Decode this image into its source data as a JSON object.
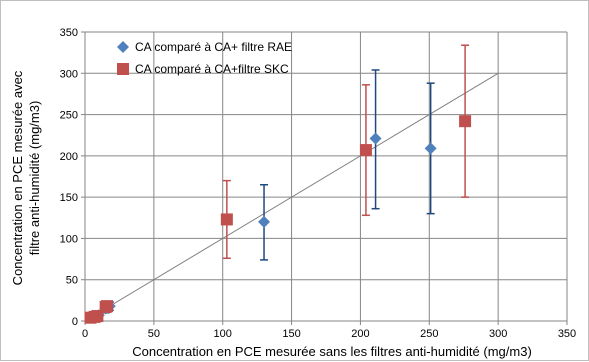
{
  "chart_data": {
    "type": "scatter",
    "title": "",
    "xlabel": "Concentration en PCE mesurée sans les filtres anti-humidité (mg/m3)",
    "ylabel": [
      "Concentration en PCE mesurée avec",
      "filtre anti-humidité (mg/m3)"
    ],
    "xlim": [
      0,
      350
    ],
    "ylim": [
      0,
      350
    ],
    "xticks": [
      "0",
      "50",
      "100",
      "150",
      "200",
      "250",
      "300",
      "350"
    ],
    "yticks": [
      "0",
      "50",
      "100",
      "150",
      "200",
      "250",
      "300",
      "350"
    ],
    "grid": true,
    "legend_position": "top-left",
    "reference_line": {
      "x": [
        0,
        300
      ],
      "y": [
        0,
        300
      ],
      "color": "#808080"
    },
    "series": [
      {
        "name": "CA comparé à CA+ filtre RAE",
        "marker": "diamond",
        "color": "#4f81bd",
        "error_color": "#1f497d",
        "points": [
          {
            "x": 5,
            "y": 5,
            "low": 3,
            "high": 7
          },
          {
            "x": 8,
            "y": 6,
            "low": 4,
            "high": 8
          },
          {
            "x": 10,
            "y": 7,
            "low": 5,
            "high": 9
          },
          {
            "x": 15,
            "y": 15,
            "low": 10,
            "high": 20
          },
          {
            "x": 18,
            "y": 18,
            "low": 13,
            "high": 23
          },
          {
            "x": 130,
            "y": 120,
            "low": 74,
            "high": 165
          },
          {
            "x": 211,
            "y": 221,
            "low": 136,
            "high": 304
          },
          {
            "x": 251,
            "y": 209,
            "low": 130,
            "high": 288
          }
        ]
      },
      {
        "name": "CA comparé à CA+filtre SKC",
        "marker": "square",
        "color": "#c0504d",
        "error_color": "#c0504d",
        "points": [
          {
            "x": 4,
            "y": 4,
            "low": 2,
            "high": 6
          },
          {
            "x": 7,
            "y": 5,
            "low": 3,
            "high": 7
          },
          {
            "x": 9,
            "y": 6,
            "low": 4,
            "high": 8
          },
          {
            "x": 15,
            "y": 17,
            "low": 12,
            "high": 22
          },
          {
            "x": 16,
            "y": 18,
            "low": 13,
            "high": 23
          },
          {
            "x": 103,
            "y": 123,
            "low": 76,
            "high": 170
          },
          {
            "x": 204,
            "y": 207,
            "low": 128,
            "high": 286
          },
          {
            "x": 276,
            "y": 242,
            "low": 150,
            "high": 334
          }
        ]
      }
    ]
  }
}
